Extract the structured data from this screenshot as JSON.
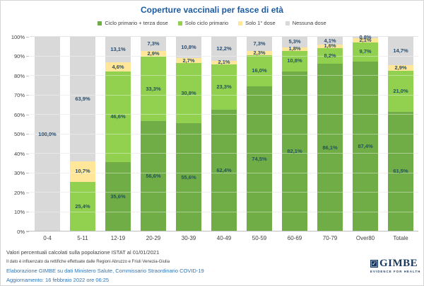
{
  "title": "Coperture vaccinali per fasce di età",
  "legend": [
    {
      "label": "Ciclo primario + terza dose",
      "color": "#70AD47"
    },
    {
      "label": "Solo ciclo primario",
      "color": "#92D050"
    },
    {
      "label": "Solo 1° dose",
      "color": "#FFE699"
    },
    {
      "label": "Nessuna dose",
      "color": "#D9D9D9"
    }
  ],
  "chart_data": {
    "type": "bar",
    "stacked": true,
    "title": "Coperture vaccinali per fasce di età",
    "categories": [
      "0-4",
      "5-11",
      "12-19",
      "20-29",
      "30-39",
      "40-49",
      "50-59",
      "60-69",
      "70-79",
      "Over80",
      "Totale"
    ],
    "series": [
      {
        "name": "Ciclo primario + terza dose",
        "color": "#70AD47",
        "values": [
          0,
          0,
          35.6,
          56.6,
          55.6,
          62.4,
          74.5,
          82.1,
          86.1,
          87.4,
          61.5
        ]
      },
      {
        "name": "Solo ciclo primario",
        "color": "#92D050",
        "values": [
          0,
          25.4,
          46.6,
          33.3,
          30.8,
          23.3,
          16.0,
          10.8,
          8.2,
          9.7,
          21.0
        ]
      },
      {
        "name": "Solo 1° dose",
        "color": "#FFE699",
        "values": [
          0,
          10.7,
          4.6,
          2.9,
          2.7,
          2.1,
          2.3,
          1.8,
          1.6,
          2.1,
          2.9
        ]
      },
      {
        "name": "Nessuna dose",
        "color": "#D9D9D9",
        "values": [
          100.0,
          63.9,
          13.1,
          7.3,
          10.8,
          12.2,
          7.3,
          5.3,
          4.1,
          0.8,
          14.7
        ]
      }
    ],
    "xlabel": "",
    "ylabel": "",
    "ylim": [
      0,
      100
    ],
    "ytick_step": 10,
    "ytick_suffix": "%",
    "grid": true,
    "legend_position": "top",
    "value_label_color": "#1F4E79",
    "value_label_format": "decimal-comma-percent"
  },
  "footer": {
    "note_istat": "Valori percentuali calcolati sulla popolazione ISTAT al 01/01/2021",
    "note_rettifiche": "Il dato è influenzato da rettifiche effettuate dalle Regioni Abruzzo e Friuli Venezia-Giulia",
    "source": "Elaborazione GIMBE su dati Ministero Salute, Commissario Straordinario COVID-19",
    "updated": "Aggiornamento: 16 febbraio 2022 ore 06:25"
  },
  "logo": {
    "name": "GIMBE",
    "tagline": "EVIDENCE FOR HEALTH",
    "mark_glyph": "✓",
    "color": "#17375E"
  }
}
